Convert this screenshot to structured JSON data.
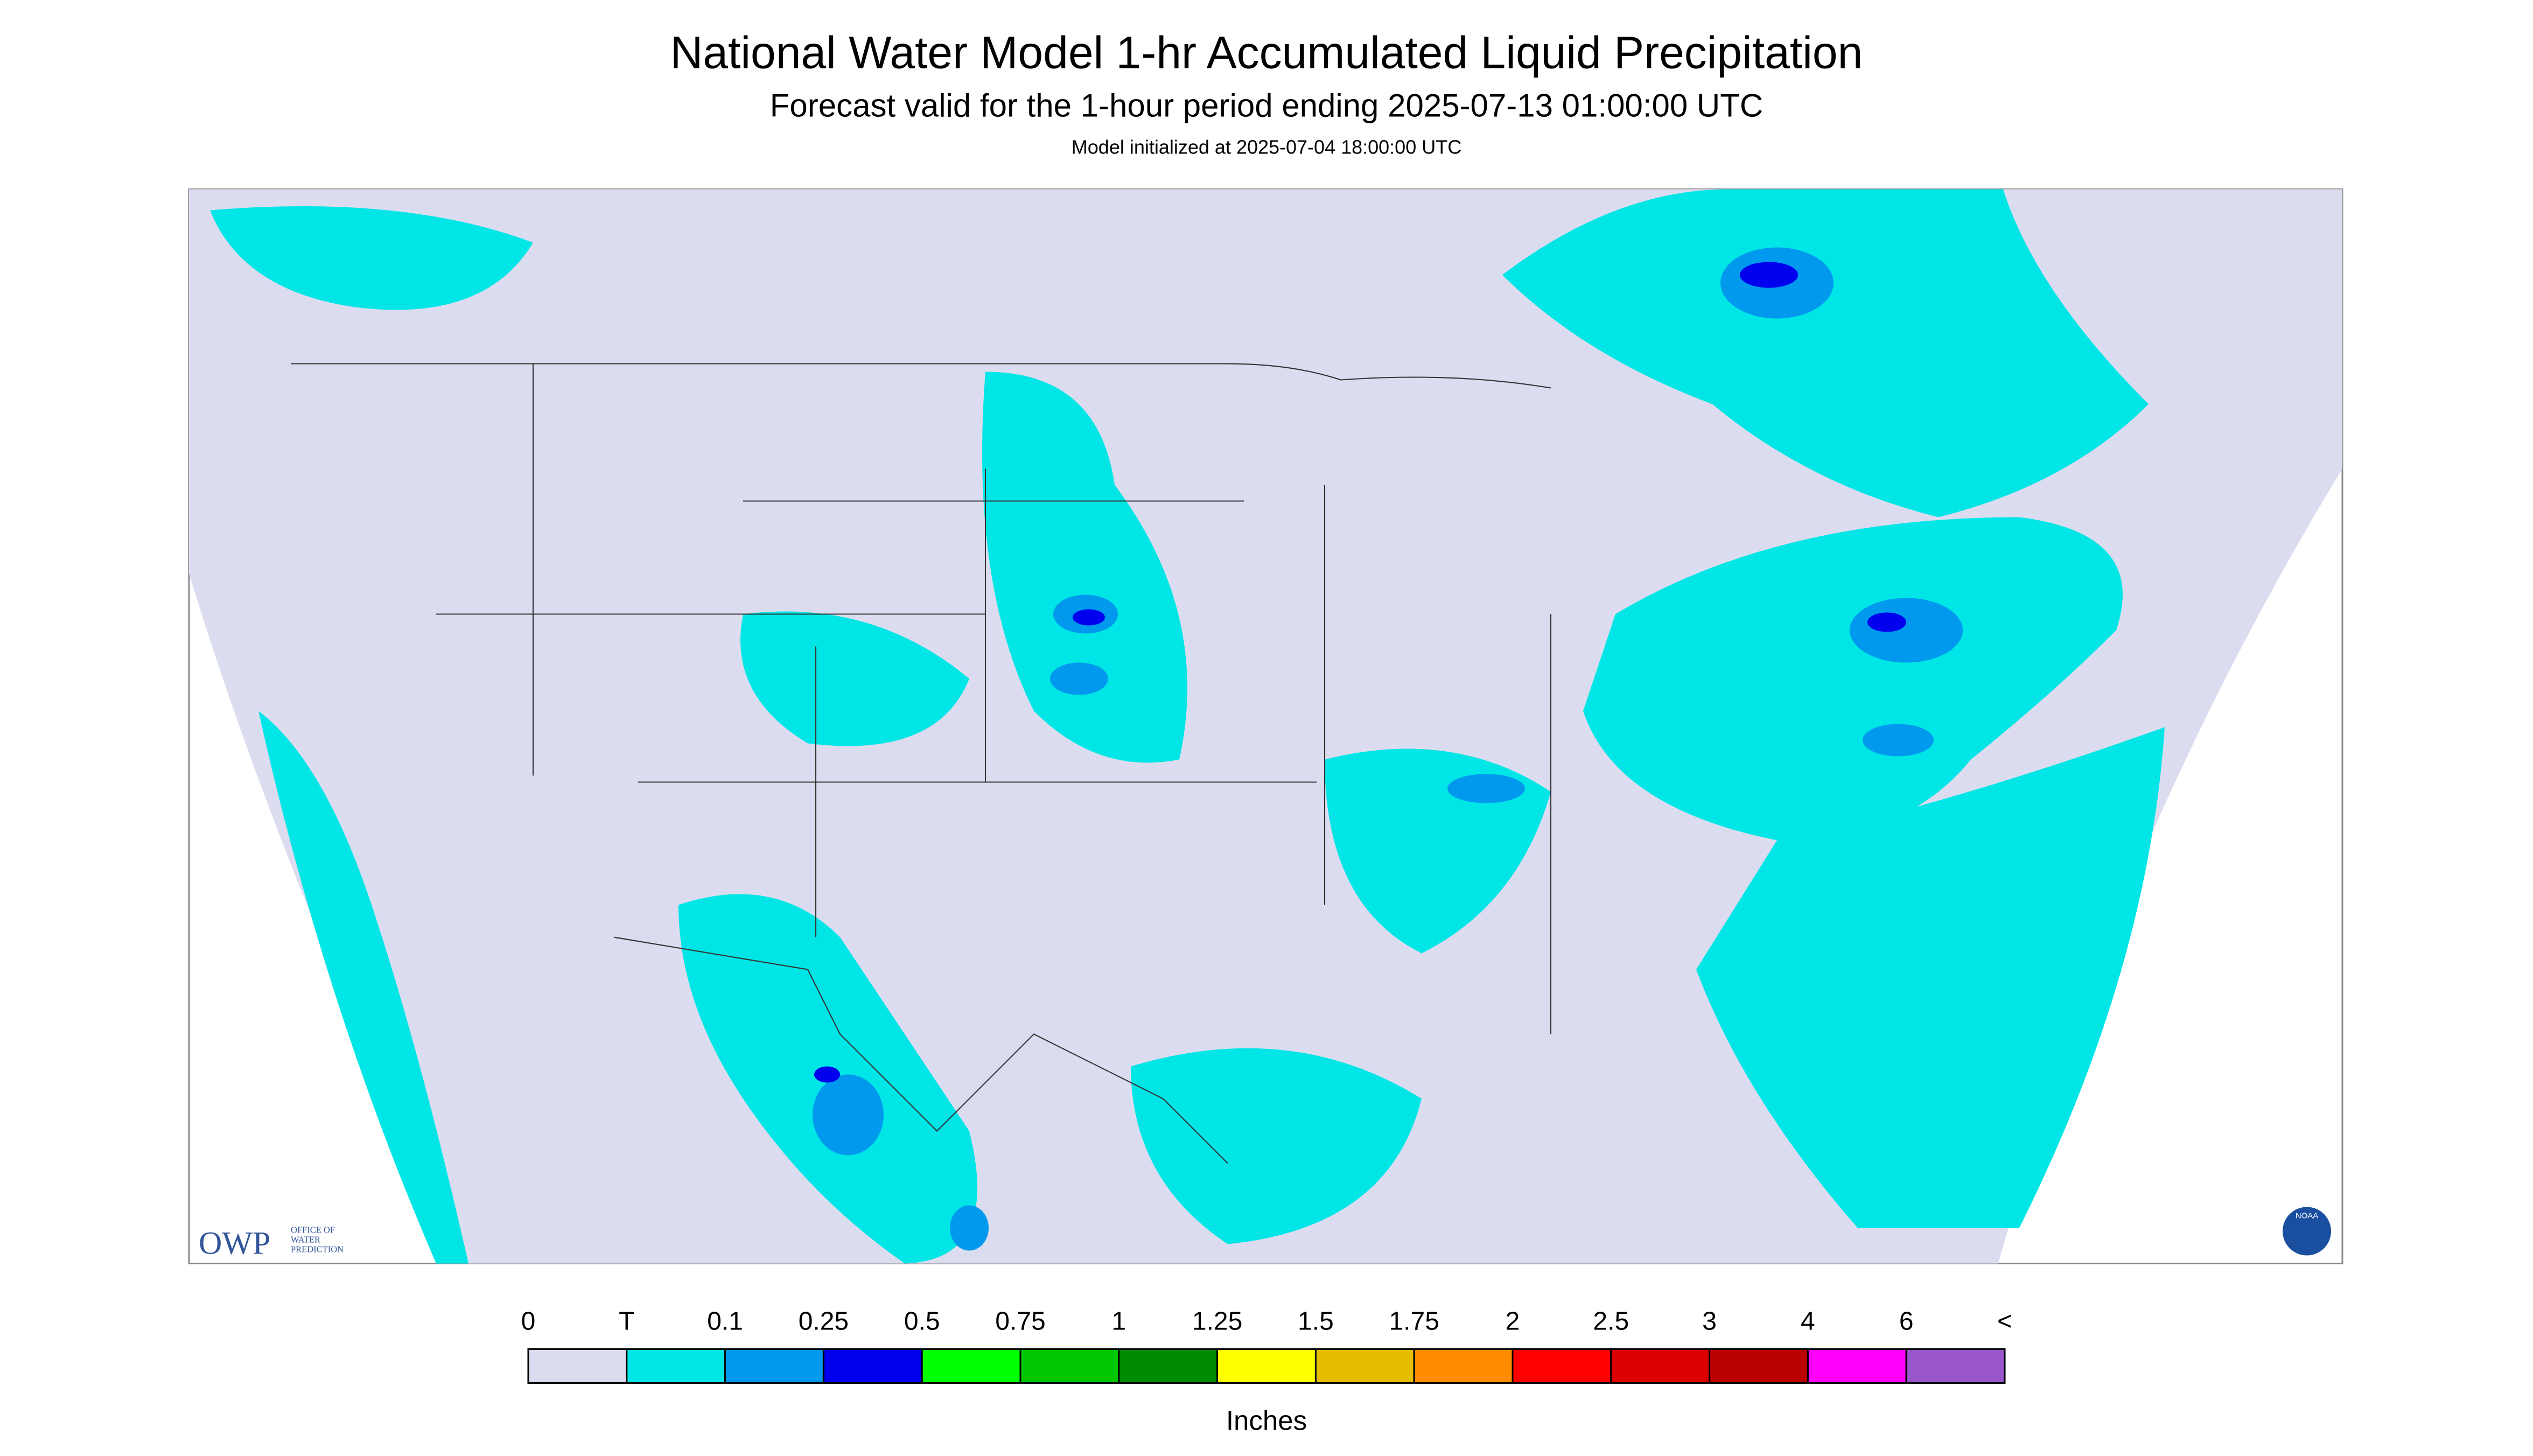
{
  "header": {
    "title": "National Water Model 1-hr Accumulated Liquid Precipitation",
    "subtitle": "Forecast valid for the 1-hour period ending 2025-07-13 01:00:00 UTC",
    "init": "Model initialized at 2025-07-04 18:00:00 UTC"
  },
  "legend": {
    "labels": [
      "0",
      "T",
      "0.1",
      "0.25",
      "0.5",
      "0.75",
      "1",
      "1.25",
      "1.5",
      "1.75",
      "2",
      "2.5",
      "3",
      "4",
      "6",
      "<"
    ],
    "colors": [
      "#dcdcf0",
      "#00e6e6",
      "#0099ee",
      "#0000ee",
      "#00ff00",
      "#00c800",
      "#008c00",
      "#ffff00",
      "#e6be00",
      "#ff8c00",
      "#ff0000",
      "#dd0000",
      "#bb0000",
      "#ff00ff",
      "#9955cc"
    ],
    "unit": "Inches"
  },
  "logos": {
    "owp": "OWP",
    "owp_lines": [
      "OFFICE OF",
      "WATER",
      "PREDICTION"
    ],
    "noaa": "NOAA"
  }
}
